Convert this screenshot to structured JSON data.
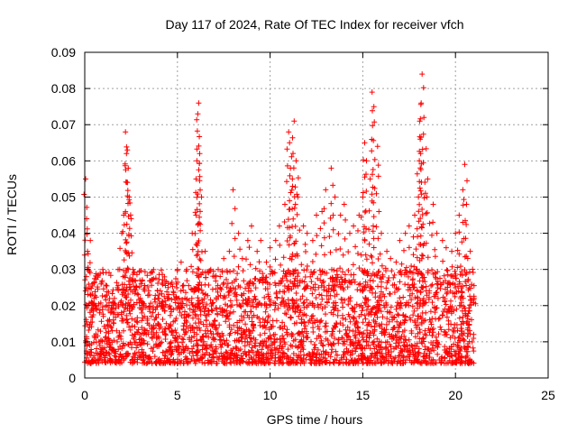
{
  "chart_data": {
    "type": "scatter",
    "title": "Day 117 of 2024, Rate Of TEC Index for receiver vfch",
    "xlabel": "GPS time / hours",
    "ylabel": "ROTI / TECUs",
    "xlim": [
      0,
      25
    ],
    "ylim": [
      0,
      0.09
    ],
    "x_ticks": [
      0,
      5,
      10,
      15,
      20,
      25
    ],
    "y_ticks": [
      0,
      0.01,
      0.02,
      0.03,
      0.04,
      0.05,
      0.06,
      0.07,
      0.08,
      0.09
    ],
    "x_tick_labels": [
      "0",
      "5",
      "10",
      "15",
      "20",
      "25"
    ],
    "y_tick_labels": [
      "0",
      "0.01",
      "0.02",
      "0.03",
      "0.04",
      "0.05",
      "0.06",
      "0.07",
      "0.08",
      "0.09"
    ],
    "grid": true,
    "marker": "+",
    "marker_color": "#ff0000",
    "series": [
      {
        "name": "ROTI",
        "x": [
          0.05,
          0.1,
          0.15,
          0.2,
          0.3,
          0.4,
          0.5,
          0.6,
          0.8,
          1.0,
          1.2,
          1.4,
          1.5,
          1.6,
          1.8,
          2.0,
          2.1,
          2.2,
          2.25,
          2.3,
          2.35,
          2.4,
          2.5,
          2.6,
          2.8,
          3.0,
          3.2,
          3.5,
          3.8,
          4.0,
          4.2,
          4.5,
          4.8,
          5.0,
          5.2,
          5.5,
          5.8,
          6.0,
          6.05,
          6.1,
          6.15,
          6.2,
          6.3,
          6.5,
          6.8,
          7.0,
          7.2,
          7.5,
          7.8,
          8.0,
          8.3,
          8.5,
          8.8,
          9.0,
          9.3,
          9.5,
          9.8,
          10.0,
          10.3,
          10.5,
          10.8,
          11.0,
          11.05,
          11.1,
          11.2,
          11.3,
          11.4,
          11.5,
          11.8,
          12.0,
          12.3,
          12.5,
          12.8,
          13.0,
          13.3,
          13.5,
          13.8,
          14.0,
          14.3,
          14.5,
          14.8,
          15.0,
          15.1,
          15.2,
          15.4,
          15.5,
          15.6,
          15.8,
          16.0,
          16.3,
          16.5,
          16.8,
          17.0,
          17.3,
          17.5,
          17.8,
          18.0,
          18.05,
          18.1,
          18.15,
          18.2,
          18.3,
          18.5,
          18.8,
          19.0,
          19.3,
          19.5,
          19.8,
          20.0,
          20.2,
          20.4,
          20.5,
          20.6,
          20.8,
          21.0
        ],
        "y": [
          0.055,
          0.044,
          0.035,
          0.03,
          0.038,
          0.026,
          0.022,
          0.02,
          0.018,
          0.017,
          0.02,
          0.018,
          0.019,
          0.022,
          0.03,
          0.04,
          0.045,
          0.068,
          0.062,
          0.063,
          0.058,
          0.05,
          0.044,
          0.03,
          0.025,
          0.022,
          0.02,
          0.019,
          0.021,
          0.022,
          0.02,
          0.025,
          0.023,
          0.03,
          0.032,
          0.03,
          0.04,
          0.045,
          0.06,
          0.073,
          0.076,
          0.062,
          0.05,
          0.035,
          0.03,
          0.028,
          0.03,
          0.033,
          0.035,
          0.052,
          0.04,
          0.033,
          0.038,
          0.042,
          0.035,
          0.038,
          0.032,
          0.036,
          0.038,
          0.042,
          0.048,
          0.068,
          0.065,
          0.058,
          0.055,
          0.071,
          0.06,
          0.05,
          0.042,
          0.04,
          0.038,
          0.045,
          0.046,
          0.052,
          0.058,
          0.05,
          0.045,
          0.048,
          0.04,
          0.042,
          0.045,
          0.05,
          0.065,
          0.06,
          0.055,
          0.079,
          0.075,
          0.064,
          0.04,
          0.035,
          0.033,
          0.032,
          0.038,
          0.04,
          0.042,
          0.045,
          0.05,
          0.06,
          0.066,
          0.076,
          0.084,
          0.072,
          0.055,
          0.048,
          0.04,
          0.038,
          0.036,
          0.035,
          0.04,
          0.045,
          0.052,
          0.059,
          0.048,
          0.035,
          0.022
        ]
      }
    ],
    "baseline_band": {
      "x_start": 0,
      "x_end": 21,
      "y_low": 0.004,
      "y_high": 0.03
    }
  }
}
